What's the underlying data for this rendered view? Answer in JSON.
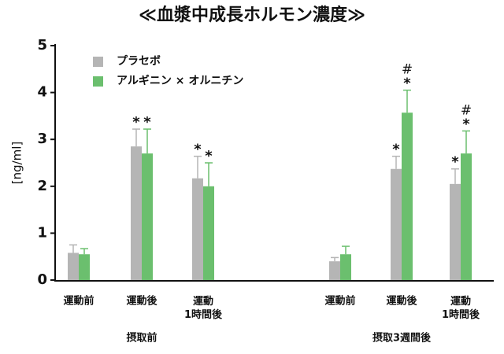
{
  "chart_data": {
    "type": "bar",
    "title": "≪血漿中成長ホルモン濃度≫",
    "y_label": "[ng/ml]",
    "categories": [
      "運動前",
      "運動後",
      "運動\n1時間後",
      "運動前",
      "運動後",
      "運動\n1時間後"
    ],
    "groups": [
      "摂取前",
      "摂取3週間後"
    ],
    "ylim": [
      0,
      5
    ],
    "yticks": [
      0,
      1,
      2,
      3,
      4,
      5
    ],
    "legend": "upper-left",
    "series": [
      {
        "name": "プラセボ",
        "color": "#b5b5b5",
        "values": [
          0.58,
          2.85,
          2.17,
          0.4,
          2.37,
          2.05
        ],
        "errors": [
          0.17,
          0.37,
          0.47,
          0.08,
          0.27,
          0.32
        ],
        "significance": [
          null,
          "*",
          "*",
          null,
          "*",
          "*"
        ],
        "significance_hash": [
          null,
          null,
          null,
          null,
          null,
          null
        ]
      },
      {
        "name": "アルギニン × オルニチン",
        "color": "#6bbf6e",
        "values": [
          0.55,
          2.7,
          2.0,
          0.55,
          3.57,
          2.7
        ],
        "errors": [
          0.12,
          0.52,
          0.5,
          0.17,
          0.48,
          0.48
        ],
        "significance": [
          null,
          "*",
          "*",
          null,
          "*",
          "*"
        ],
        "significance_hash": [
          null,
          null,
          null,
          null,
          "#",
          "#"
        ]
      }
    ]
  }
}
